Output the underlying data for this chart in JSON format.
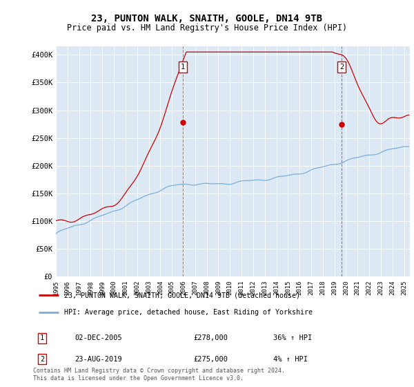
{
  "title": "23, PUNTON WALK, SNAITH, GOOLE, DN14 9TB",
  "subtitle": "Price paid vs. HM Land Registry's House Price Index (HPI)",
  "ylabel_ticks": [
    "£0",
    "£50K",
    "£100K",
    "£150K",
    "£200K",
    "£250K",
    "£300K",
    "£350K",
    "£400K"
  ],
  "ytick_values": [
    0,
    50000,
    100000,
    150000,
    200000,
    250000,
    300000,
    350000,
    400000
  ],
  "ylim": [
    0,
    415000
  ],
  "xlim_start": 1995.0,
  "xlim_end": 2025.5,
  "background_color": "#dce9f5",
  "hpi_color": "#7aaddb",
  "price_color": "#cc0000",
  "marker1_x": 2005.92,
  "marker1_y": 278000,
  "marker2_x": 2019.64,
  "marker2_y": 275000,
  "legend_line1": "23, PUNTON WALK, SNAITH, GOOLE, DN14 9TB (detached house)",
  "legend_line2": "HPI: Average price, detached house, East Riding of Yorkshire",
  "marker1_date": "02-DEC-2005",
  "marker1_price": "£278,000",
  "marker1_hpi": "36% ↑ HPI",
  "marker2_date": "23-AUG-2019",
  "marker2_price": "£275,000",
  "marker2_hpi": "4% ↑ HPI",
  "footnote": "Contains HM Land Registry data © Crown copyright and database right 2024.\nThis data is licensed under the Open Government Licence v3.0.",
  "xtick_years": [
    1995,
    1996,
    1997,
    1998,
    1999,
    2000,
    2001,
    2002,
    2003,
    2004,
    2005,
    2006,
    2007,
    2008,
    2009,
    2010,
    2011,
    2012,
    2013,
    2014,
    2015,
    2016,
    2017,
    2018,
    2019,
    2020,
    2021,
    2022,
    2023,
    2024,
    2025
  ]
}
